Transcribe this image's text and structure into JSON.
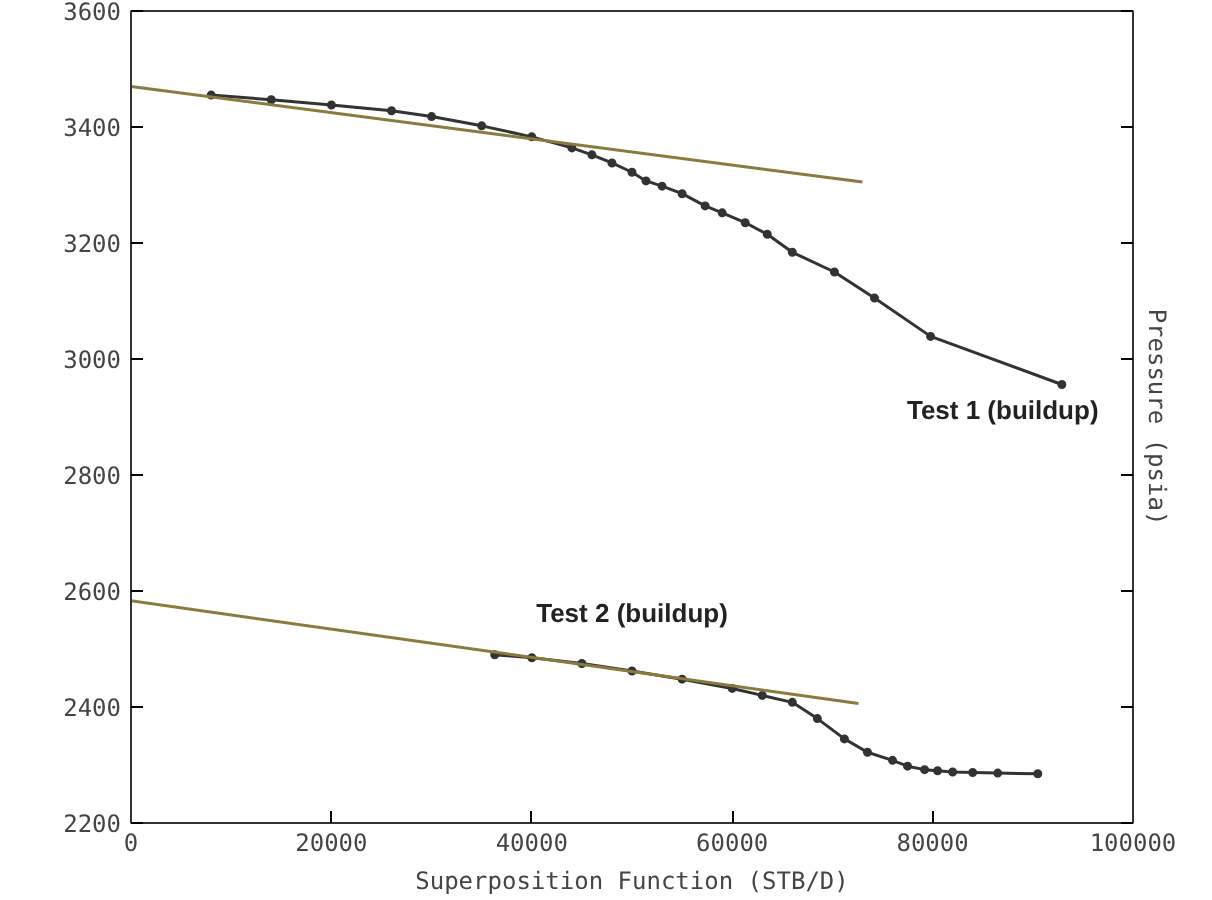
{
  "chart_data": {
    "type": "line",
    "xlabel": "Superposition Function (STB/D)",
    "ylabel": "Pressure (psia)",
    "xlim": [
      0,
      100000
    ],
    "ylim": [
      2200,
      3600
    ],
    "xticks": [
      0,
      20000,
      40000,
      60000,
      80000,
      100000
    ],
    "yticks": [
      2200,
      2400,
      2600,
      2800,
      3000,
      3200,
      3400,
      3600
    ],
    "grid": false,
    "series": [
      {
        "color": "#333333",
        "marker": "circle",
        "x": [
          8000,
          14000,
          20000,
          26000,
          30000,
          35000,
          40000,
          44000,
          46000,
          48000,
          50000,
          51400,
          53000,
          55000,
          57300,
          59000,
          61300,
          63500,
          66000,
          70200,
          74200,
          79800,
          92900
        ],
        "values": [
          3455,
          3447,
          3438,
          3428,
          3418,
          3402,
          3383,
          3364,
          3352,
          3338,
          3322,
          3307,
          3298,
          3285,
          3264,
          3252,
          3235,
          3215,
          3184,
          3150,
          3105,
          3039,
          2956
        ]
      },
      {
        "color": "#333333",
        "marker": "circle",
        "x": [
          36300,
          40000,
          45000,
          50000,
          55000,
          60000,
          63000,
          66000,
          68500,
          71200,
          73500,
          76000,
          77500,
          79200,
          80500,
          82000,
          84000,
          86500,
          90500
        ],
        "values": [
          2490,
          2485,
          2475,
          2462,
          2448,
          2432,
          2420,
          2408,
          2380,
          2345,
          2322,
          2308,
          2298,
          2292,
          2290,
          2288,
          2287,
          2286,
          2285
        ]
      },
      {
        "color": "#8a7a40",
        "x": [
          0,
          73000
        ],
        "values": [
          3470,
          3305
        ]
      },
      {
        "color": "#8a7a40",
        "x": [
          0,
          72600
        ],
        "values": [
          2583,
          2406
        ]
      }
    ],
    "annotations": [
      "Test 1 (buildup)",
      "Test 2 (buildup)"
    ]
  }
}
